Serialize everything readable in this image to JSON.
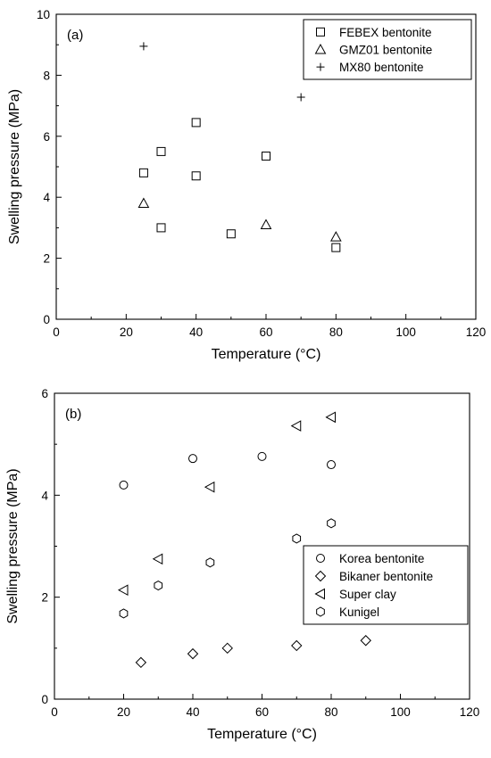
{
  "chart_data": [
    {
      "type": "scatter",
      "panel_label": "(a)",
      "xlabel": "Temperature (°C)",
      "ylabel": "Swelling pressure (MPa)",
      "xlim": [
        0,
        120
      ],
      "ylim": [
        0,
        10
      ],
      "xticks": [
        "0",
        "20",
        "40",
        "60",
        "80",
        "100",
        "120"
      ],
      "yticks": [
        "0",
        "2",
        "4",
        "6",
        "8",
        "10"
      ],
      "legend_position": "top-right",
      "grid": false,
      "series": [
        {
          "name": "FEBEX bentonite",
          "marker": "square",
          "x": [
            25,
            30,
            30,
            40,
            40,
            50,
            60,
            80
          ],
          "y": [
            4.8,
            5.5,
            3.0,
            6.45,
            4.7,
            2.8,
            5.35,
            2.35
          ]
        },
        {
          "name": "GMZ01 bentonite",
          "marker": "triangle-up",
          "x": [
            25,
            60,
            80
          ],
          "y": [
            3.8,
            3.1,
            2.7
          ]
        },
        {
          "name": "MX80 bentonite",
          "marker": "plus",
          "x": [
            25,
            70
          ],
          "y": [
            8.95,
            7.28
          ]
        }
      ]
    },
    {
      "type": "scatter",
      "panel_label": "(b)",
      "xlabel": "Temperature (°C)",
      "ylabel": "Swelling pressure (MPa)",
      "xlim": [
        0,
        120
      ],
      "ylim": [
        0,
        6
      ],
      "xticks": [
        "0",
        "20",
        "40",
        "60",
        "80",
        "100",
        "120"
      ],
      "yticks": [
        "0",
        "2",
        "4",
        "6"
      ],
      "legend_position": "bottom-right",
      "grid": false,
      "series": [
        {
          "name": "Korea bentonite",
          "marker": "circle",
          "x": [
            20,
            40,
            60,
            80
          ],
          "y": [
            4.2,
            4.72,
            4.76,
            4.6
          ]
        },
        {
          "name": "Bikaner bentonite",
          "marker": "diamond",
          "x": [
            25,
            40,
            50,
            70,
            90
          ],
          "y": [
            0.72,
            0.89,
            1.0,
            1.05,
            1.15
          ]
        },
        {
          "name": "Super clay",
          "marker": "triangle-left",
          "x": [
            20,
            30,
            45,
            70,
            80
          ],
          "y": [
            2.14,
            2.75,
            4.16,
            5.36,
            5.53
          ]
        },
        {
          "name": "Kunigel",
          "marker": "hexagon",
          "x": [
            20,
            30,
            45,
            70,
            80
          ],
          "y": [
            1.68,
            2.23,
            2.68,
            3.15,
            3.45
          ]
        }
      ]
    }
  ]
}
